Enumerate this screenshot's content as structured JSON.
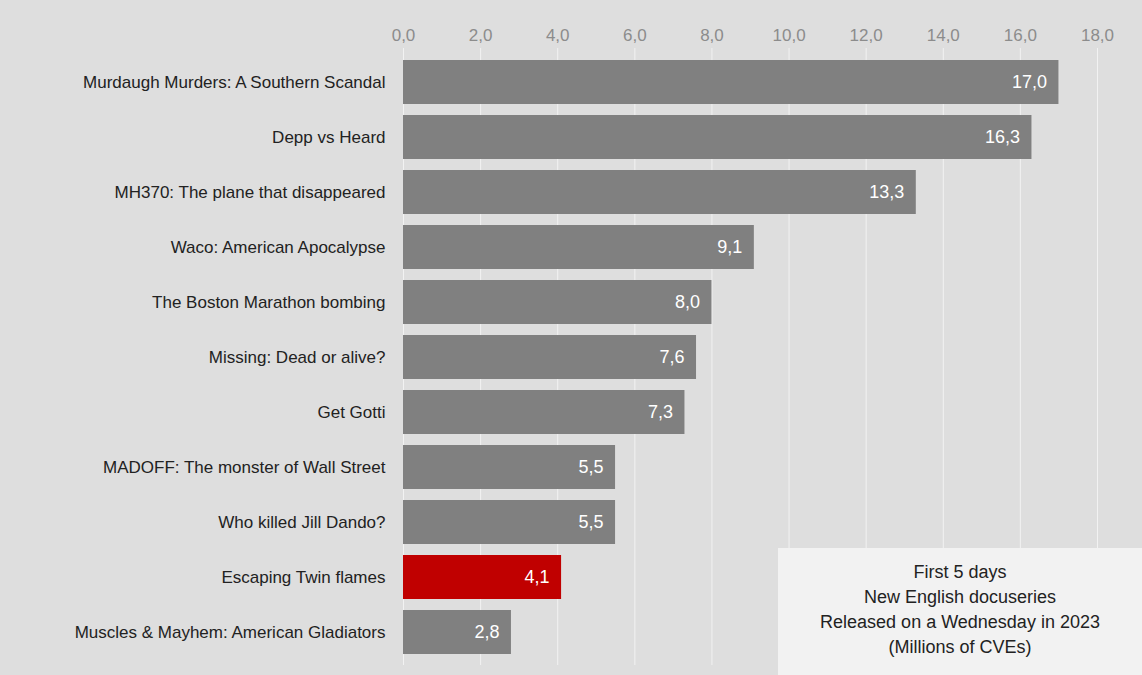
{
  "chart_data": {
    "type": "bar",
    "orientation": "horizontal",
    "categories": [
      "Murdaugh Murders: A Southern Scandal",
      "Depp vs Heard",
      "MH370: The plane that disappeared",
      "Waco: American Apocalypse",
      "The Boston Marathon bombing",
      "Missing: Dead or alive?",
      "Get Gotti",
      "MADOFF: The monster of Wall Street",
      "Who killed Jill Dando?",
      "Escaping Twin flames",
      "Muscles & Mayhem: American Gladiators"
    ],
    "values": [
      17.0,
      16.3,
      13.3,
      9.1,
      8.0,
      7.6,
      7.3,
      5.5,
      5.5,
      4.1,
      2.8
    ],
    "value_labels": [
      "17,0",
      "16,3",
      "13,3",
      "9,1",
      "8,0",
      "7,6",
      "7,3",
      "5,5",
      "5,5",
      "4,1",
      "2,8"
    ],
    "colors": [
      "#808080",
      "#808080",
      "#808080",
      "#808080",
      "#808080",
      "#808080",
      "#808080",
      "#808080",
      "#808080",
      "#c00000",
      "#808080"
    ],
    "data_labels": true,
    "grid": true,
    "xlim": [
      0,
      18
    ],
    "xticks": [
      {
        "value": 0,
        "label": "0,0"
      },
      {
        "value": 2,
        "label": "2,0"
      },
      {
        "value": 4,
        "label": "4,0"
      },
      {
        "value": 6,
        "label": "6,0"
      },
      {
        "value": 8,
        "label": "8,0"
      },
      {
        "value": 10,
        "label": "10,0"
      },
      {
        "value": 12,
        "label": "12,0"
      },
      {
        "value": 14,
        "label": "14,0"
      },
      {
        "value": 16,
        "label": "16,0"
      },
      {
        "value": 18,
        "label": "18,0"
      }
    ],
    "annotations": [
      "First 5 days",
      "New English docuseries",
      "Released on a Wednesday in 2023",
      "(Millions of CVEs)"
    ]
  }
}
